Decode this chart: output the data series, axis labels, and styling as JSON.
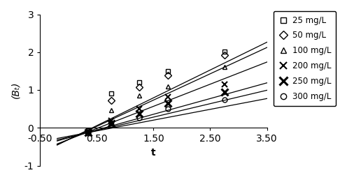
{
  "title": "",
  "xlabel": "t",
  "ylabel": "(Bₜ)",
  "xlim": [
    -0.5,
    3.5
  ],
  "ylim": [
    -1.0,
    3.0
  ],
  "xticks": [
    -0.5,
    0.5,
    1.5,
    2.5,
    3.5
  ],
  "yticks": [
    -1,
    0,
    1,
    2,
    3
  ],
  "xtick_labels": [
    "-0.50",
    "0.50",
    "1.50",
    "2.50",
    "3.50"
  ],
  "ytick_labels": [
    "-1",
    "0",
    "1",
    "2",
    "3"
  ],
  "series": [
    {
      "label": "25 mg/L",
      "marker": "s",
      "x_data": [
        0.35,
        0.75,
        1.25,
        1.75,
        2.75
      ],
      "y_data": [
        -0.06,
        0.9,
        1.2,
        1.5,
        2.02
      ],
      "slope": 0.735,
      "intercept": -0.31
    },
    {
      "label": "50 mg/L",
      "marker": "D",
      "x_data": [
        0.35,
        0.75,
        1.25,
        1.75,
        2.75
      ],
      "y_data": [
        -0.09,
        0.72,
        1.08,
        1.38,
        1.93
      ],
      "slope": 0.695,
      "intercept": -0.31
    },
    {
      "label": "100 mg/L",
      "marker": "^",
      "x_data": [
        0.35,
        0.75,
        1.25,
        1.75,
        2.75
      ],
      "y_data": [
        -0.1,
        0.47,
        0.85,
        1.1,
        1.6
      ],
      "slope": 0.585,
      "intercept": -0.31
    },
    {
      "label": "200 mg/L",
      "marker": "x",
      "x_data": [
        0.35,
        0.75,
        1.25,
        1.75,
        2.75
      ],
      "y_data": [
        -0.12,
        0.18,
        0.5,
        0.82,
        1.15
      ],
      "slope": 0.415,
      "intercept": -0.265
    },
    {
      "label": "250 mg/L",
      "marker": "x",
      "marker_style": "bold_x",
      "x_data": [
        0.35,
        0.75,
        1.25,
        1.75,
        2.75
      ],
      "y_data": [
        -0.13,
        0.12,
        0.38,
        0.65,
        0.95
      ],
      "slope": 0.355,
      "intercept": -0.25
    },
    {
      "label": "300 mg/L",
      "marker": "o",
      "x_data": [
        0.35,
        0.75,
        1.25,
        1.75,
        2.75
      ],
      "y_data": [
        -0.14,
        0.08,
        0.27,
        0.5,
        0.75
      ],
      "slope": 0.285,
      "intercept": -0.225
    }
  ],
  "line_color": "black",
  "marker_color": "black",
  "marker_size": 5,
  "line_width": 0.9,
  "background_color": "#ffffff",
  "legend_fontsize": 8.5,
  "axis_fontsize": 10,
  "tick_fontsize": 8
}
